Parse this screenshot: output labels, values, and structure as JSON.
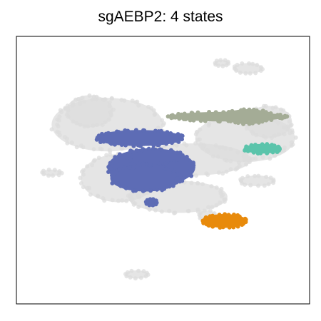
{
  "chart_data": {
    "type": "scatter",
    "title": "sgAEBP2: 4 states",
    "xlabel": "",
    "ylabel": "",
    "xlim": [
      0,
      100
    ],
    "ylim": [
      0,
      100
    ],
    "grid": false,
    "legend": "none",
    "background": {
      "name": "all-cells",
      "color": "#dcdcdc",
      "regions": [
        {
          "name": "left-main-mass",
          "cx": 31,
          "cy": 67,
          "rx": 19,
          "ry": 10
        },
        {
          "name": "left-upper-lobe",
          "cx": 25,
          "cy": 72,
          "rx": 8,
          "ry": 6
        },
        {
          "name": "left-lower-tail",
          "cx": 35,
          "cy": 47,
          "rx": 13,
          "ry": 9
        },
        {
          "name": "center-band",
          "cx": 60,
          "cy": 54,
          "rx": 20,
          "ry": 6
        },
        {
          "name": "lower-band",
          "cx": 55,
          "cy": 40,
          "rx": 17,
          "ry": 6
        },
        {
          "name": "right-large-mass",
          "cx": 78,
          "cy": 62,
          "rx": 17,
          "ry": 9
        },
        {
          "name": "right-upper-lobe",
          "cx": 86,
          "cy": 68,
          "rx": 8,
          "ry": 6
        },
        {
          "name": "top-right-small",
          "cx": 79,
          "cy": 88,
          "rx": 5,
          "ry": 2
        },
        {
          "name": "top-right-tiny",
          "cx": 70,
          "cy": 90,
          "rx": 2.5,
          "ry": 1.2
        },
        {
          "name": "left-island",
          "cx": 12,
          "cy": 49,
          "rx": 3.5,
          "ry": 1.2
        },
        {
          "name": "bottom-island",
          "cx": 41,
          "cy": 11,
          "rx": 4,
          "ry": 1.5
        },
        {
          "name": "right-mid-island",
          "cx": 82,
          "cy": 46,
          "rx": 6,
          "ry": 2
        },
        {
          "name": "lower-right-island",
          "cx": 65,
          "cy": 33,
          "rx": 3,
          "ry": 2
        }
      ]
    },
    "series": [
      {
        "name": "state-gray",
        "color": "#a4ac96",
        "regions": [
          {
            "cx": 72,
            "cy": 70,
            "rx": 20,
            "ry": 1.8
          },
          {
            "cx": 79,
            "cy": 70,
            "rx": 8,
            "ry": 2.8
          }
        ]
      },
      {
        "name": "state-blue",
        "color": "#5d6cb5",
        "regions": [
          {
            "cx": 42,
            "cy": 62,
            "rx": 15,
            "ry": 3
          },
          {
            "cx": 46,
            "cy": 51,
            "rx": 15,
            "ry": 7
          },
          {
            "cx": 44,
            "cy": 47,
            "rx": 12,
            "ry": 5
          },
          {
            "cx": 47,
            "cy": 55,
            "rx": 10,
            "ry": 3
          },
          {
            "cx": 46,
            "cy": 38,
            "rx": 2,
            "ry": 1.2
          }
        ]
      },
      {
        "name": "state-teal",
        "color": "#5bc4ab",
        "regions": [
          {
            "cx": 84,
            "cy": 58,
            "rx": 6.5,
            "ry": 1.8
          }
        ]
      },
      {
        "name": "state-orange",
        "color": "#e88a0b",
        "regions": [
          {
            "cx": 71,
            "cy": 31,
            "rx": 7.5,
            "ry": 2.6
          }
        ]
      }
    ]
  }
}
